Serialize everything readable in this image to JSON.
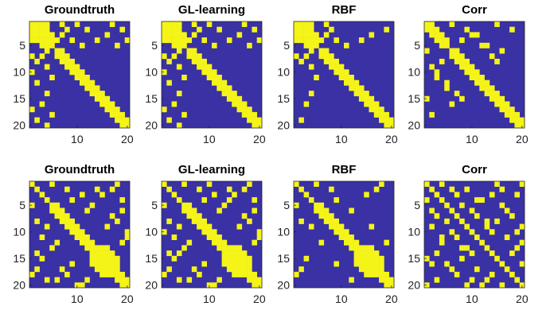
{
  "colors": {
    "background": "#3a31a4",
    "edge": "#f4f418",
    "axis": "#262626"
  },
  "chart_data": [
    {
      "type": "heatmap",
      "title": "Groundtruth",
      "size": 20,
      "yticks": [
        5,
        10,
        15,
        20
      ],
      "xticks": [
        10,
        20
      ],
      "edges": [
        [
          1,
          2
        ],
        [
          1,
          3
        ],
        [
          1,
          4
        ],
        [
          2,
          3
        ],
        [
          2,
          4
        ],
        [
          3,
          4
        ],
        [
          3,
          5
        ],
        [
          4,
          5
        ],
        [
          1,
          7
        ],
        [
          2,
          8
        ],
        [
          1,
          10
        ],
        [
          2,
          12
        ],
        [
          4,
          14
        ],
        [
          1,
          17
        ],
        [
          2,
          19
        ],
        [
          4,
          20
        ],
        [
          3,
          7
        ],
        [
          4,
          9
        ],
        [
          5,
          11
        ],
        [
          3,
          16
        ],
        [
          5,
          18
        ],
        [
          4,
          6
        ],
        [
          6,
          7
        ],
        [
          7,
          8
        ],
        [
          8,
          9
        ],
        [
          9,
          10
        ],
        [
          10,
          11
        ],
        [
          11,
          12
        ],
        [
          12,
          13
        ],
        [
          13,
          14
        ],
        [
          14,
          15
        ],
        [
          15,
          16
        ],
        [
          16,
          17
        ],
        [
          17,
          18
        ],
        [
          18,
          19
        ],
        [
          19,
          20
        ]
      ]
    },
    {
      "type": "heatmap",
      "title": "GL-learning",
      "size": 20,
      "yticks": [
        5,
        10,
        15,
        20
      ],
      "xticks": [
        10,
        20
      ],
      "edges": [
        [
          1,
          2
        ],
        [
          1,
          3
        ],
        [
          1,
          4
        ],
        [
          2,
          3
        ],
        [
          2,
          4
        ],
        [
          3,
          4
        ],
        [
          3,
          5
        ],
        [
          4,
          5
        ],
        [
          1,
          7
        ],
        [
          2,
          8
        ],
        [
          1,
          10
        ],
        [
          2,
          12
        ],
        [
          4,
          14
        ],
        [
          1,
          17
        ],
        [
          2,
          19
        ],
        [
          4,
          20
        ],
        [
          3,
          7
        ],
        [
          4,
          9
        ],
        [
          5,
          11
        ],
        [
          3,
          16
        ],
        [
          5,
          18
        ],
        [
          4,
          6
        ],
        [
          6,
          7
        ],
        [
          7,
          8
        ],
        [
          8,
          9
        ],
        [
          9,
          10
        ],
        [
          10,
          11
        ],
        [
          11,
          12
        ],
        [
          12,
          13
        ],
        [
          13,
          14
        ],
        [
          14,
          15
        ],
        [
          15,
          16
        ],
        [
          16,
          17
        ],
        [
          17,
          18
        ],
        [
          18,
          19
        ],
        [
          19,
          20
        ]
      ]
    },
    {
      "type": "heatmap",
      "title": "RBF",
      "size": 20,
      "yticks": [
        5,
        10,
        15,
        20
      ],
      "xticks": [
        10,
        20
      ],
      "edges": [
        [
          1,
          2
        ],
        [
          1,
          3
        ],
        [
          1,
          4
        ],
        [
          2,
          3
        ],
        [
          2,
          4
        ],
        [
          3,
          4
        ],
        [
          3,
          5
        ],
        [
          4,
          5
        ],
        [
          1,
          7
        ],
        [
          2,
          8
        ],
        [
          4,
          14
        ],
        [
          2,
          19
        ],
        [
          3,
          7
        ],
        [
          4,
          9
        ],
        [
          5,
          11
        ],
        [
          3,
          16
        ],
        [
          4,
          6
        ],
        [
          6,
          7
        ],
        [
          7,
          8
        ],
        [
          8,
          9
        ],
        [
          9,
          10
        ],
        [
          10,
          11
        ],
        [
          11,
          12
        ],
        [
          12,
          13
        ],
        [
          13,
          14
        ],
        [
          14,
          15
        ],
        [
          15,
          16
        ],
        [
          16,
          17
        ],
        [
          17,
          18
        ],
        [
          18,
          19
        ],
        [
          19,
          20
        ]
      ]
    },
    {
      "type": "heatmap",
      "title": "Corr",
      "size": 20,
      "yticks": [
        5,
        10,
        15,
        20
      ],
      "xticks": [
        10,
        20
      ],
      "edges": [
        [
          1,
          2
        ],
        [
          2,
          3
        ],
        [
          3,
          4
        ],
        [
          4,
          5
        ],
        [
          1,
          6
        ],
        [
          2,
          9
        ],
        [
          3,
          11
        ],
        [
          5,
          13
        ],
        [
          1,
          15
        ],
        [
          2,
          18
        ],
        [
          4,
          8
        ],
        [
          6,
          16
        ],
        [
          5,
          12
        ],
        [
          6,
          7
        ],
        [
          7,
          8
        ],
        [
          8,
          9
        ],
        [
          9,
          10
        ],
        [
          10,
          11
        ],
        [
          11,
          12
        ],
        [
          12,
          13
        ],
        [
          13,
          14
        ],
        [
          14,
          15
        ],
        [
          15,
          16
        ],
        [
          16,
          17
        ],
        [
          17,
          18
        ],
        [
          18,
          19
        ],
        [
          19,
          20
        ],
        [
          3,
          10
        ],
        [
          7,
          14
        ],
        [
          8,
          15
        ]
      ]
    },
    {
      "type": "heatmap",
      "title": "Groundtruth",
      "size": 20,
      "yticks": [
        5,
        10,
        15,
        20
      ],
      "xticks": [
        10,
        20
      ],
      "edges": [
        [
          1,
          5
        ],
        [
          2,
          8
        ],
        [
          3,
          11
        ],
        [
          4,
          9
        ],
        [
          5,
          6
        ],
        [
          6,
          7
        ],
        [
          7,
          8
        ],
        [
          8,
          9
        ],
        [
          9,
          10
        ],
        [
          10,
          11
        ],
        [
          11,
          12
        ],
        [
          12,
          13
        ],
        [
          13,
          14
        ],
        [
          14,
          15
        ],
        [
          15,
          16
        ],
        [
          16,
          17
        ],
        [
          17,
          18
        ],
        [
          18,
          19
        ],
        [
          19,
          20
        ],
        [
          13,
          15
        ],
        [
          13,
          16
        ],
        [
          14,
          16
        ],
        [
          14,
          17
        ],
        [
          15,
          17
        ],
        [
          15,
          18
        ],
        [
          16,
          18
        ],
        [
          2,
          17
        ],
        [
          4,
          19
        ],
        [
          6,
          12
        ],
        [
          9,
          16
        ],
        [
          10,
          20
        ],
        [
          3,
          15
        ],
        [
          1,
          18
        ],
        [
          5,
          13
        ],
        [
          7,
          17
        ],
        [
          12,
          19
        ],
        [
          6,
          19
        ],
        [
          8,
          18
        ],
        [
          11,
          20
        ],
        [
          2,
          14
        ]
      ]
    },
    {
      "type": "heatmap",
      "title": "GL-learning",
      "size": 20,
      "yticks": [
        5,
        10,
        15,
        20
      ],
      "xticks": [
        10,
        20
      ],
      "edges": [
        [
          1,
          5
        ],
        [
          2,
          8
        ],
        [
          3,
          11
        ],
        [
          4,
          9
        ],
        [
          5,
          6
        ],
        [
          6,
          7
        ],
        [
          7,
          8
        ],
        [
          8,
          9
        ],
        [
          9,
          10
        ],
        [
          10,
          11
        ],
        [
          11,
          12
        ],
        [
          12,
          13
        ],
        [
          13,
          14
        ],
        [
          14,
          15
        ],
        [
          15,
          16
        ],
        [
          16,
          17
        ],
        [
          17,
          18
        ],
        [
          18,
          19
        ],
        [
          19,
          20
        ],
        [
          13,
          15
        ],
        [
          13,
          16
        ],
        [
          14,
          16
        ],
        [
          14,
          17
        ],
        [
          15,
          17
        ],
        [
          15,
          18
        ],
        [
          16,
          18
        ],
        [
          2,
          17
        ],
        [
          4,
          19
        ],
        [
          6,
          12
        ],
        [
          9,
          16
        ],
        [
          10,
          20
        ],
        [
          3,
          15
        ],
        [
          1,
          18
        ],
        [
          5,
          13
        ],
        [
          7,
          17
        ],
        [
          12,
          19
        ],
        [
          6,
          19
        ],
        [
          8,
          18
        ],
        [
          11,
          20
        ],
        [
          2,
          14
        ],
        [
          1,
          10
        ],
        [
          4,
          14
        ]
      ]
    },
    {
      "type": "heatmap",
      "title": "RBF",
      "size": 20,
      "yticks": [
        5,
        10,
        15,
        20
      ],
      "xticks": [
        10,
        20
      ],
      "edges": [
        [
          1,
          5
        ],
        [
          2,
          8
        ],
        [
          4,
          9
        ],
        [
          5,
          6
        ],
        [
          6,
          7
        ],
        [
          7,
          8
        ],
        [
          8,
          9
        ],
        [
          9,
          10
        ],
        [
          10,
          11
        ],
        [
          11,
          12
        ],
        [
          12,
          13
        ],
        [
          13,
          14
        ],
        [
          14,
          15
        ],
        [
          15,
          16
        ],
        [
          16,
          17
        ],
        [
          17,
          18
        ],
        [
          18,
          19
        ],
        [
          19,
          20
        ],
        [
          13,
          15
        ],
        [
          13,
          16
        ],
        [
          14,
          16
        ],
        [
          14,
          17
        ],
        [
          15,
          17
        ],
        [
          15,
          18
        ],
        [
          16,
          18
        ],
        [
          2,
          17
        ],
        [
          6,
          12
        ],
        [
          9,
          16
        ],
        [
          3,
          15
        ],
        [
          1,
          18
        ],
        [
          12,
          19
        ]
      ]
    },
    {
      "type": "heatmap",
      "title": "Corr",
      "size": 20,
      "yticks": [
        5,
        10,
        15,
        20
      ],
      "xticks": [
        10,
        20
      ],
      "edges": [
        [
          1,
          4
        ],
        [
          2,
          9
        ],
        [
          3,
          7
        ],
        [
          4,
          12
        ],
        [
          5,
          16
        ],
        [
          6,
          10
        ],
        [
          7,
          18
        ],
        [
          8,
          13
        ],
        [
          9,
          20
        ],
        [
          1,
          15
        ],
        [
          2,
          6
        ],
        [
          3,
          19
        ],
        [
          5,
          8
        ],
        [
          10,
          14
        ],
        [
          11,
          17
        ],
        [
          12,
          20
        ],
        [
          4,
          11
        ],
        [
          6,
          17
        ],
        [
          13,
          19
        ],
        [
          14,
          18
        ],
        [
          1,
          20
        ],
        [
          16,
          20
        ],
        [
          9,
          13
        ],
        [
          2,
          16
        ],
        [
          7,
          11
        ],
        [
          8,
          15
        ],
        [
          10,
          19
        ],
        [
          3,
          14
        ]
      ]
    }
  ]
}
